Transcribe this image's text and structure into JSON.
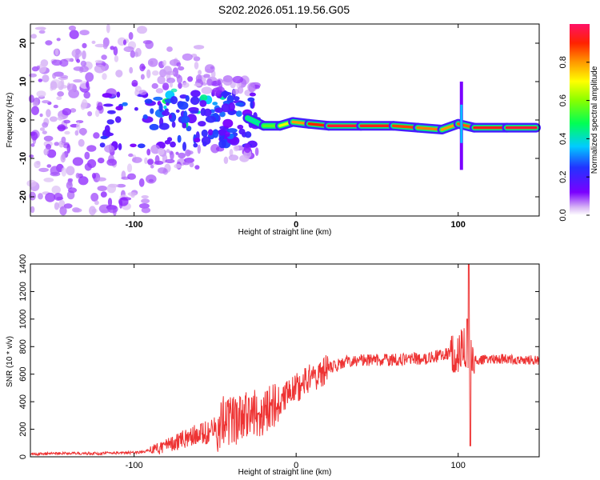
{
  "title": "S202.2026.051.19.56.G05",
  "chart_data": [
    {
      "type": "heatmap",
      "xlabel": "Height of straight line (km)",
      "ylabel": "Frequency (Hz)",
      "xlim": [
        -164,
        150
      ],
      "ylim": [
        -25,
        25
      ],
      "xticks": [
        -100,
        0,
        100
      ],
      "yticks": [
        -20,
        -10,
        0,
        10,
        20
      ],
      "colorbar": {
        "label": "Normalized spectral amplitude",
        "range": [
          0,
          1
        ],
        "ticks": [
          "0.0",
          "0.2",
          "0.4",
          "0.6",
          "0.8"
        ],
        "tick_values": [
          0,
          0.2,
          0.4,
          0.6,
          0.8
        ]
      },
      "ridge": [
        {
          "x": -30,
          "f": 0.5,
          "amp": 0.35
        },
        {
          "x": -20,
          "f": -1.5,
          "amp": 0.5
        },
        {
          "x": -10,
          "f": -1.5,
          "amp": 0.6
        },
        {
          "x": -2,
          "f": -0.5,
          "amp": 0.75
        },
        {
          "x": 8,
          "f": -1.0,
          "amp": 0.85
        },
        {
          "x": 20,
          "f": -1.5,
          "amp": 0.95
        },
        {
          "x": 40,
          "f": -1.5,
          "amp": 0.95
        },
        {
          "x": 60,
          "f": -1.5,
          "amp": 0.9
        },
        {
          "x": 75,
          "f": -2.0,
          "amp": 0.85
        },
        {
          "x": 90,
          "f": -2.5,
          "amp": 0.8
        },
        {
          "x": 100,
          "f": -1.0,
          "amp": 0.8
        },
        {
          "x": 110,
          "f": -2.0,
          "amp": 0.9
        },
        {
          "x": 130,
          "f": -2.0,
          "amp": 0.95
        },
        {
          "x": 148,
          "f": -2.0,
          "amp": 0.95
        }
      ]
    },
    {
      "type": "line",
      "xlabel": "Height of straight line (km)",
      "ylabel": "SNR (10 * v/v)",
      "xlim": [
        -164,
        150
      ],
      "ylim": [
        0,
        1400
      ],
      "xticks": [
        -100,
        0,
        100
      ],
      "yticks": [
        0,
        200,
        400,
        600,
        800,
        1000,
        1200,
        1400
      ],
      "color": "#ee3333",
      "series": [
        {
          "name": "SNR",
          "x": [
            -164,
            -140,
            -120,
            -100,
            -90,
            -80,
            -70,
            -60,
            -50,
            -40,
            -30,
            -20,
            -10,
            0,
            10,
            20,
            30,
            40,
            60,
            80,
            90,
            100,
            104,
            106,
            108,
            110,
            120,
            130,
            150
          ],
          "values": [
            20,
            25,
            25,
            30,
            45,
            80,
            130,
            160,
            200,
            250,
            300,
            330,
            420,
            500,
            580,
            640,
            690,
            700,
            705,
            715,
            740,
            760,
            820,
            600,
            740,
            700,
            710,
            710,
            700
          ]
        }
      ]
    }
  ]
}
